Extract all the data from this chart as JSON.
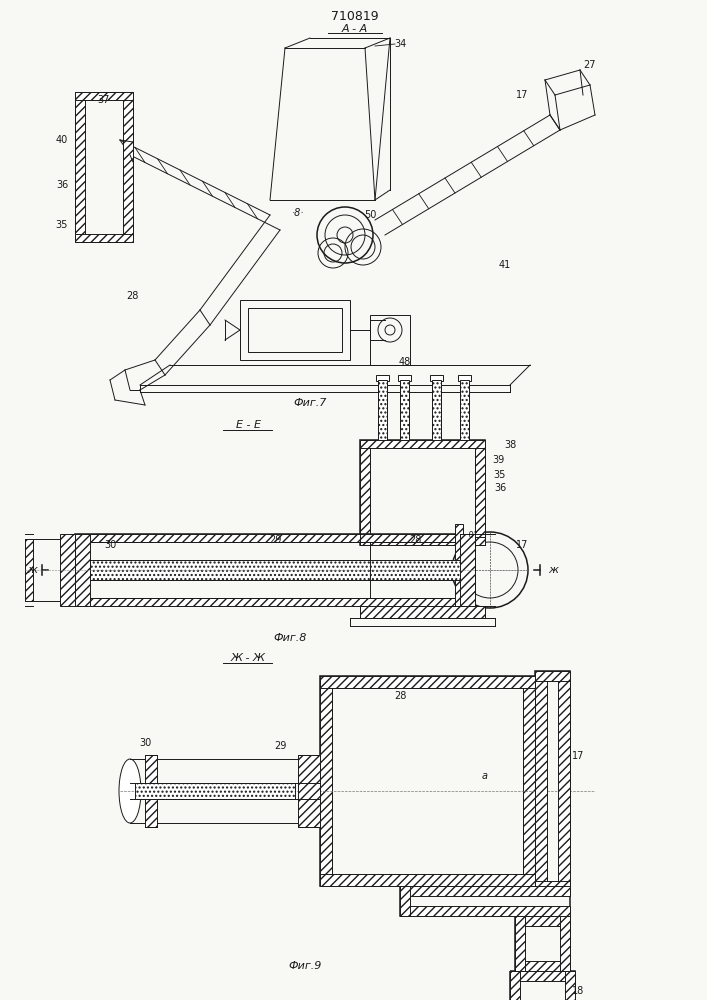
{
  "bg_color": "#f8f8f5",
  "line_color": "#1a1a1a",
  "title_text": "710819",
  "label_AA": "А - А",
  "label_EE": "Е - Е",
  "label_ZhZh": "Ж - Ж",
  "label_fig7": "Фиг.7",
  "label_fig8": "Фиг.8",
  "label_fig9": "Фиг.9"
}
